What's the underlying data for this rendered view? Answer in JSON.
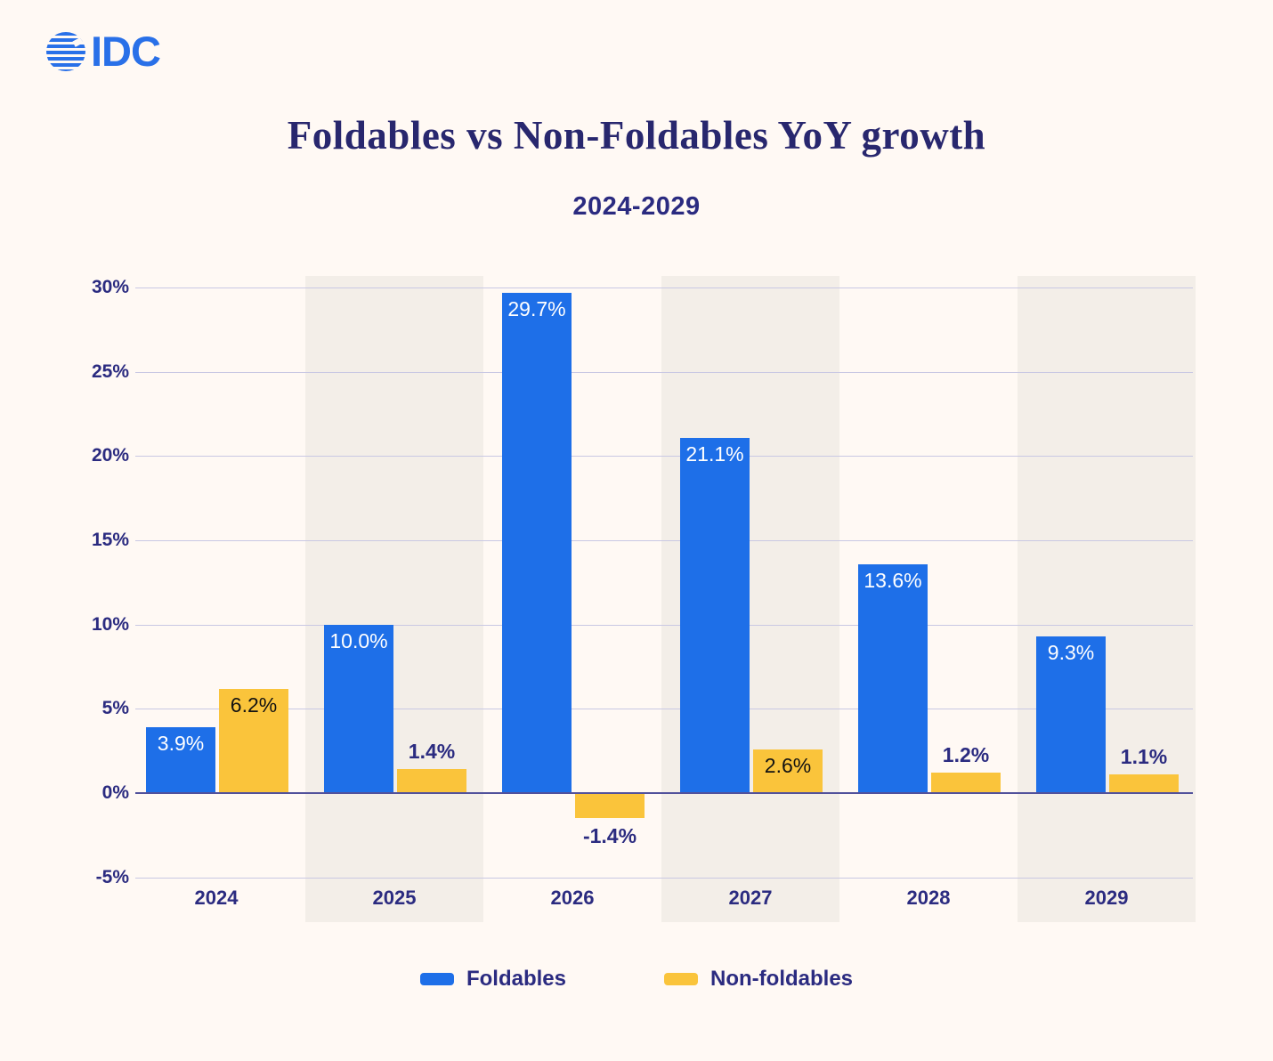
{
  "logo": {
    "text": "IDC",
    "color": "#2970E8"
  },
  "title": "Foldables vs Non-Foldables YoY growth",
  "subtitle": "2024-2029",
  "colors": {
    "background": "#FFF9F4",
    "column_stripe": "#F3EEE8",
    "foldables_blue": "#1E6FE8",
    "non_foldables_yellow": "#FAC43B",
    "navy_text": "#2B2B80",
    "gridline": "#C9C8E3",
    "zero_line": "#51519B",
    "label_on_blue": "#FFFFFF",
    "label_on_yellow": "#121212"
  },
  "chart_data": {
    "type": "bar",
    "title": "Foldables vs Non-Foldables YoY growth",
    "subtitle": "2024-2029",
    "categories": [
      "2024",
      "2025",
      "2026",
      "2027",
      "2028",
      "2029"
    ],
    "series": [
      {
        "name": "Foldables",
        "color": "#1E6FE8",
        "values": [
          3.9,
          10.0,
          29.7,
          21.1,
          13.6,
          9.3
        ],
        "labels": [
          "3.9%",
          "10.0%",
          "29.7%",
          "21.1%",
          "13.6%",
          "9.3%"
        ]
      },
      {
        "name": "Non-foldables",
        "color": "#FAC43B",
        "values": [
          6.2,
          1.4,
          -1.4,
          2.6,
          1.2,
          1.1
        ],
        "labels": [
          "6.2%",
          "1.4%",
          "-1.4%",
          "2.6%",
          "1.2%",
          "1.1%"
        ]
      }
    ],
    "xlabel": "",
    "ylabel": "",
    "ylim": [
      -5,
      30
    ],
    "y_ticks": [
      "30%",
      "25%",
      "20%",
      "15%",
      "10%",
      "5%",
      "0%",
      "-5%"
    ],
    "grid": true,
    "legend_position": "bottom"
  },
  "legend": {
    "items": [
      {
        "label": "Foldables",
        "color": "#1E6FE8"
      },
      {
        "label": "Non-foldables",
        "color": "#FAC43B"
      }
    ]
  }
}
